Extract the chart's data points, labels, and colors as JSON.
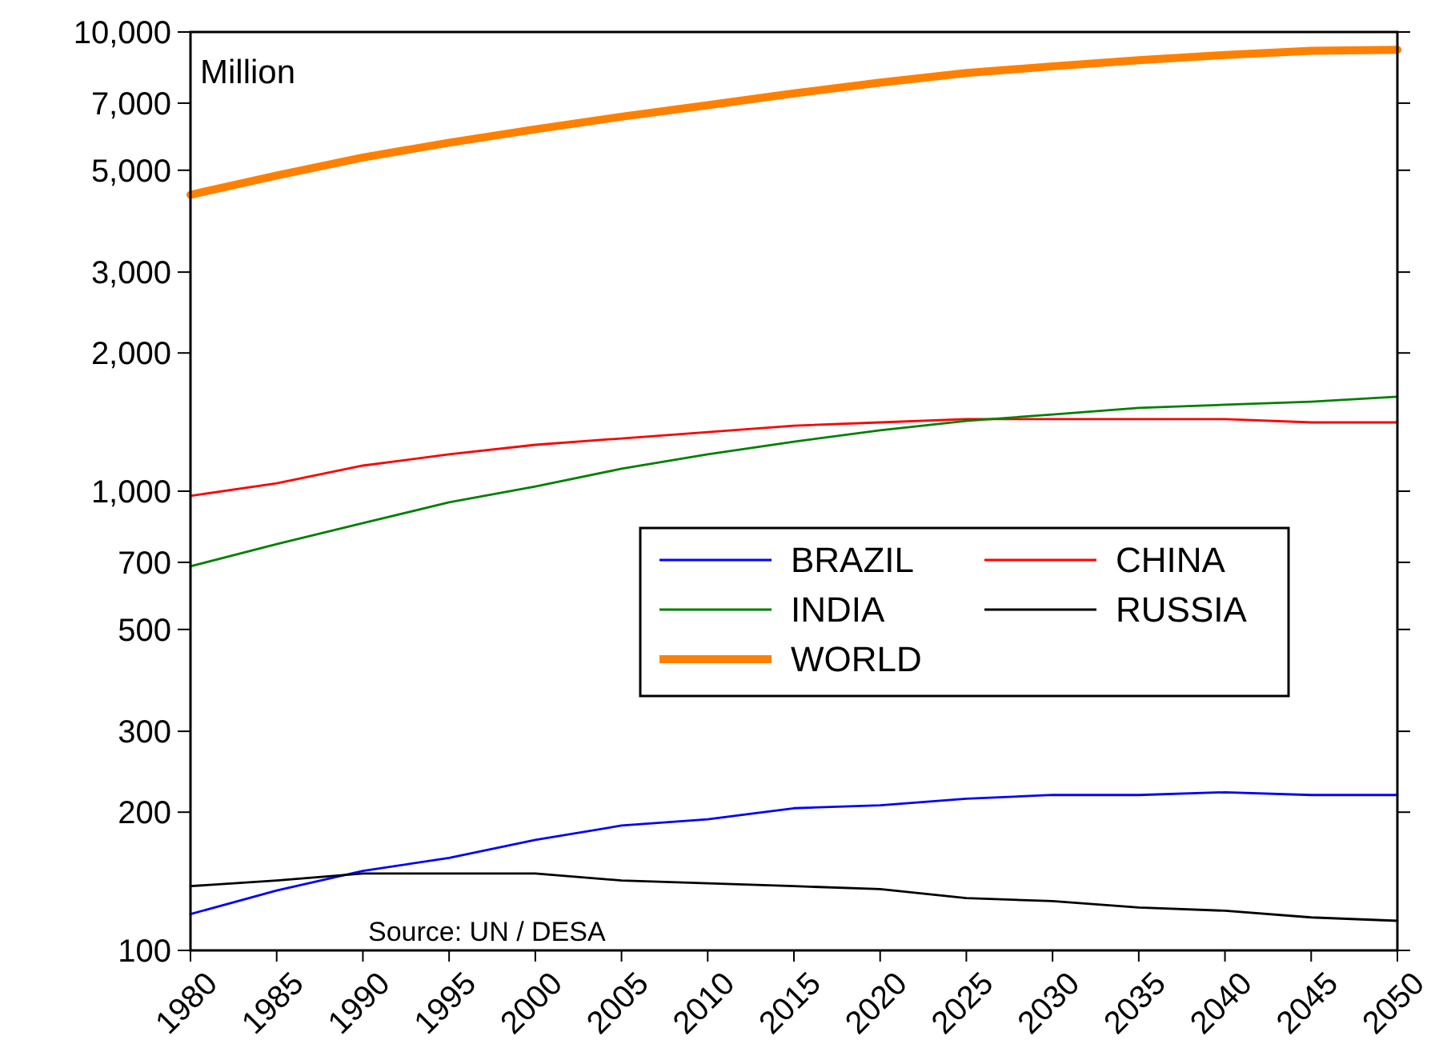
{
  "chart_data": {
    "type": "line",
    "x": [
      1980,
      1985,
      1990,
      1995,
      2000,
      2005,
      2010,
      2015,
      2020,
      2025,
      2030,
      2035,
      2040,
      2045,
      2050
    ],
    "xlim": [
      1980,
      2050
    ],
    "xticks": [
      1980,
      1985,
      1990,
      1995,
      2000,
      2005,
      2010,
      2015,
      2020,
      2025,
      2030,
      2035,
      2040,
      2045,
      2050
    ],
    "log": "y",
    "ylim": [
      100,
      10000
    ],
    "yticks": [
      100,
      200,
      300,
      500,
      700,
      {
        "value": 1000,
        "label": "1,000"
      },
      {
        "value": 2000,
        "label": "2,000"
      },
      {
        "value": 3000,
        "label": "3,000"
      },
      {
        "value": 5000,
        "label": "5,000"
      },
      {
        "value": 7000,
        "label": "7,000"
      },
      {
        "value": 10000,
        "label": "10,000"
      }
    ],
    "grid": false,
    "legend": "right",
    "line_style": "solid",
    "annotations": [
      "Million",
      "Source: UN / DESA"
    ],
    "series": [
      {
        "name": "BRAZIL",
        "color": "#0000ff",
        "values": [
          120,
          135,
          149,
          159,
          174,
          187,
          193,
          204,
          207,
          214,
          218,
          218,
          221,
          218,
          218
        ]
      },
      {
        "name": "CHINA",
        "color": "#ff0000",
        "values": [
          977,
          1040,
          1137,
          1203,
          1262,
          1303,
          1345,
          1389,
          1412,
          1435,
          1435,
          1435,
          1435,
          1412,
          1412
        ]
      },
      {
        "name": "INDIA",
        "color": "#008000",
        "values": [
          686,
          767,
          852,
          946,
          1024,
          1119,
          1203,
          1282,
          1357,
          1423,
          1469,
          1518,
          1543,
          1567,
          1606
        ]
      },
      {
        "name": "RUSSIA",
        "color": "#000000",
        "values": [
          138,
          142,
          147,
          147,
          147,
          142,
          140,
          138,
          136,
          130,
          128,
          124,
          122,
          118,
          116
        ]
      },
      {
        "name": "WORLD",
        "color": "#ff8000",
        "values": [
          4420,
          4870,
          5330,
          5740,
          6140,
          6540,
          6930,
          7350,
          7760,
          8140,
          8420,
          8680,
          8910,
          9100,
          9150
        ]
      }
    ]
  }
}
